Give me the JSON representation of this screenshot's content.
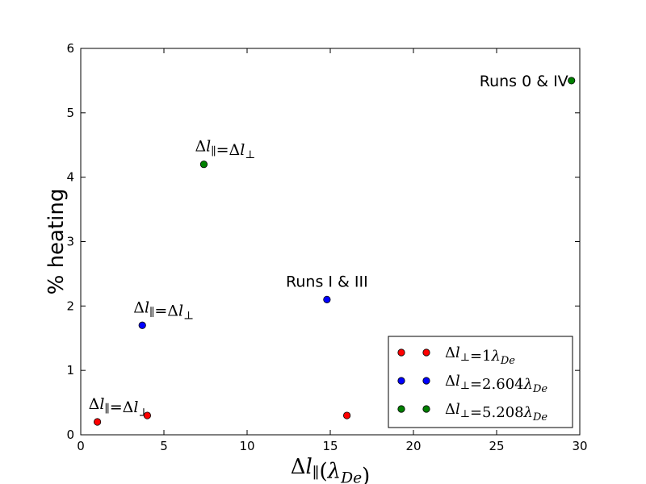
{
  "chart_data": {
    "type": "scatter",
    "xlabel": "Δl∥(λDe)",
    "ylabel": "% heating",
    "xlim": [
      0,
      30
    ],
    "ylim": [
      0,
      6
    ],
    "xticks": [
      "0",
      "5",
      "10",
      "15",
      "20",
      "25",
      "30"
    ],
    "yticks": [
      "0",
      "1",
      "2",
      "3",
      "4",
      "5",
      "6"
    ],
    "grid": false,
    "legend_position": "lower-right",
    "series": [
      {
        "name": "Δl⊥=1λDe",
        "color": "#ff0000",
        "points": [
          {
            "x": 1.0,
            "y": 0.2
          },
          {
            "x": 4.0,
            "y": 0.3
          },
          {
            "x": 16.0,
            "y": 0.3
          }
        ]
      },
      {
        "name": "Δl⊥=2.604λDe",
        "color": "#0000ff",
        "points": [
          {
            "x": 3.7,
            "y": 1.7
          },
          {
            "x": 14.8,
            "y": 2.1
          }
        ]
      },
      {
        "name": "Δl⊥=5.208λDe",
        "color": "#008000",
        "points": [
          {
            "x": 7.4,
            "y": 4.2
          },
          {
            "x": 29.5,
            "y": 5.5
          }
        ]
      }
    ],
    "annotations": [
      {
        "text": "Δl∥=Δl⊥",
        "x": 1.0,
        "y": 0.2
      },
      {
        "text": "Δl∥=Δl⊥",
        "x": 3.7,
        "y": 1.7
      },
      {
        "text": "Δl∥=Δl⊥",
        "x": 7.4,
        "y": 4.2
      },
      {
        "text": "Runs I & III",
        "x": 14.8,
        "y": 2.1
      },
      {
        "text": "Runs 0 & IV",
        "x": 29.5,
        "y": 5.5
      }
    ]
  }
}
